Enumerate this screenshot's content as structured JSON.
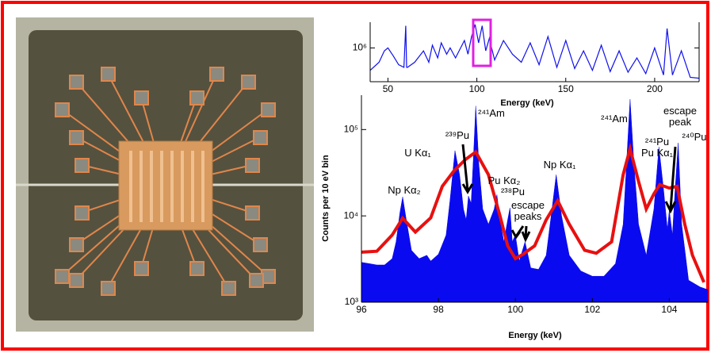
{
  "chart_data": [
    {
      "type": "line",
      "log_y": true,
      "xlabel": "Energy (keV)",
      "xlim": [
        40,
        225
      ],
      "xticks": [
        50,
        100,
        150,
        200
      ],
      "ylim": [
        300000,
        2500000
      ],
      "yticks": [
        {
          "value": 1000000,
          "label": "10⁶"
        }
      ],
      "series": [
        {
          "color": "#1010ee",
          "x": [
            40,
            45,
            48,
            50,
            53,
            56,
            59,
            60,
            60.5,
            61,
            65,
            70,
            73,
            75,
            78,
            80,
            83,
            85,
            88,
            90,
            93,
            95,
            97,
            99,
            101,
            103,
            105,
            107,
            110,
            115,
            120,
            125,
            130,
            135,
            140,
            145,
            150,
            155,
            160,
            165,
            170,
            175,
            180,
            185,
            190,
            195,
            200,
            205,
            207,
            210,
            215,
            220,
            225
          ],
          "values": [
            450000,
            600000,
            900000,
            1000000,
            750000,
            550000,
            500000,
            2200000,
            500000,
            500000,
            600000,
            900000,
            600000,
            1100000,
            700000,
            1200000,
            800000,
            1000000,
            700000,
            900000,
            1300000,
            800000,
            1500000,
            2300000,
            1200000,
            2200000,
            900000,
            1400000,
            650000,
            1300000,
            800000,
            600000,
            1200000,
            550000,
            1500000,
            500000,
            1300000,
            480000,
            900000,
            450000,
            1100000,
            430000,
            900000,
            420000,
            700000,
            400000,
            1000000,
            380000,
            2000000,
            380000,
            900000,
            350000,
            340000
          ]
        }
      ]
    },
    {
      "type": "line",
      "log_y": true,
      "xlabel": "Energy (keV)",
      "ylabel": "Counts per 10 eV bin",
      "xlim": [
        96,
        105
      ],
      "xticks": [
        96,
        98,
        100,
        102,
        104
      ],
      "ylim": [
        1000,
        250000
      ],
      "yticks": [
        {
          "value": 1000,
          "label": "10³"
        },
        {
          "value": 10000,
          "label": "10⁴"
        },
        {
          "value": 100000,
          "label": "10⁵"
        }
      ],
      "series": [
        {
          "type": "area",
          "color": "#0a0af0",
          "x": [
            96.0,
            96.2,
            96.4,
            96.6,
            96.8,
            96.9,
            97.0,
            97.07,
            97.15,
            97.3,
            97.5,
            97.7,
            97.8,
            98.0,
            98.2,
            98.3,
            98.43,
            98.55,
            98.65,
            98.72,
            98.78,
            98.85,
            98.92,
            98.97,
            99.05,
            99.15,
            99.3,
            99.45,
            99.52,
            99.6,
            99.7,
            99.8,
            99.86,
            99.92,
            100.0,
            100.1,
            100.25,
            100.4,
            100.6,
            100.8,
            100.95,
            101.06,
            101.2,
            101.4,
            101.7,
            102.0,
            102.3,
            102.6,
            102.8,
            102.9,
            102.98,
            103.08,
            103.2,
            103.4,
            103.6,
            103.73,
            103.85,
            103.95,
            104.0,
            104.08,
            104.15,
            104.23,
            104.32,
            104.5,
            104.8,
            105.0
          ],
          "values": [
            2900,
            2800,
            2700,
            2700,
            3200,
            5000,
            11000,
            16600,
            10000,
            4000,
            3200,
            3500,
            3000,
            3600,
            6000,
            15000,
            57000,
            30000,
            12000,
            9000,
            17000,
            14000,
            60000,
            188000,
            40000,
            12000,
            8000,
            12000,
            17600,
            9000,
            5000,
            9000,
            12400,
            5000,
            6000,
            3000,
            5000,
            2500,
            2400,
            3500,
            12000,
            30000,
            10000,
            3500,
            2300,
            2000,
            2000,
            2800,
            8000,
            50000,
            224000,
            40000,
            8000,
            3500,
            12000,
            63000,
            20000,
            7000,
            11600,
            6000,
            20000,
            70000,
            8000,
            1800,
            1500,
            1400
          ]
        },
        {
          "type": "line",
          "color": "#e81010",
          "x": [
            96.0,
            96.4,
            96.8,
            97.07,
            97.4,
            97.8,
            98.1,
            98.4,
            98.7,
            98.97,
            99.3,
            99.6,
            99.8,
            100.0,
            100.2,
            100.5,
            100.8,
            101.1,
            101.4,
            101.8,
            102.1,
            102.5,
            102.8,
            102.98,
            103.2,
            103.4,
            103.6,
            103.75,
            104.0,
            104.2,
            104.4,
            104.6,
            104.9
          ],
          "values": [
            3800,
            3900,
            6000,
            9400,
            6500,
            9500,
            22000,
            33000,
            45000,
            55000,
            30000,
            10000,
            4500,
            3200,
            3600,
            4500,
            9000,
            15000,
            8000,
            4000,
            3700,
            5000,
            30000,
            60000,
            25000,
            12000,
            18000,
            23000,
            21000,
            22000,
            8000,
            3500,
            1700
          ]
        }
      ],
      "annotations": [
        "Np Kα₂",
        "U Kα₁",
        "²³⁹Pu",
        "²⁴¹Am",
        "Pu Kα₂",
        "²³⁸Pu",
        "escape peaks",
        "Np Kα₁",
        "²⁴¹Am",
        "²⁴¹Pu",
        "Pu Kα₁",
        "escape peak",
        "²⁴⁰Pu"
      ]
    }
  ]
}
